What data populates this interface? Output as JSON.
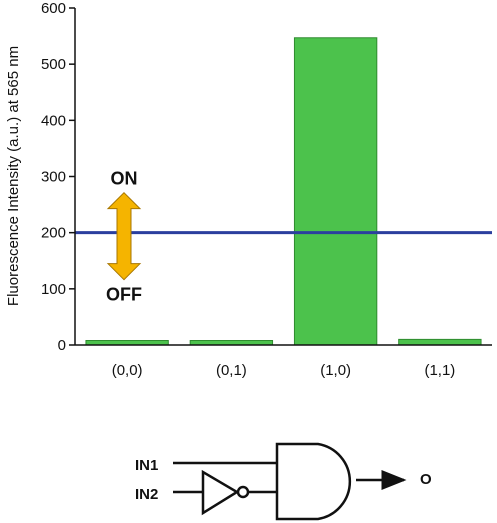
{
  "chart_data": {
    "type": "bar",
    "categories": [
      "(0,0)",
      "(0,1)",
      "(1,0)",
      "(1,1)"
    ],
    "values": [
      8,
      8,
      547,
      10
    ],
    "ylabel": "Fluorescence Intensity (a.u.) at 565 nm",
    "xlabel": "",
    "ylim": [
      0,
      600
    ],
    "yticks": [
      0,
      100,
      200,
      300,
      400,
      500,
      600
    ],
    "threshold": 200,
    "bar_color": "#4cc24c",
    "bar_edge_color": "#2e8b2e",
    "threshold_color": "#2b3f9e",
    "arrow_color": "#f5b400",
    "state_labels": {
      "on": "ON",
      "off": "OFF"
    },
    "grid": false
  },
  "logic_gate": {
    "inputs": [
      "IN1",
      "IN2"
    ],
    "output": "O"
  }
}
